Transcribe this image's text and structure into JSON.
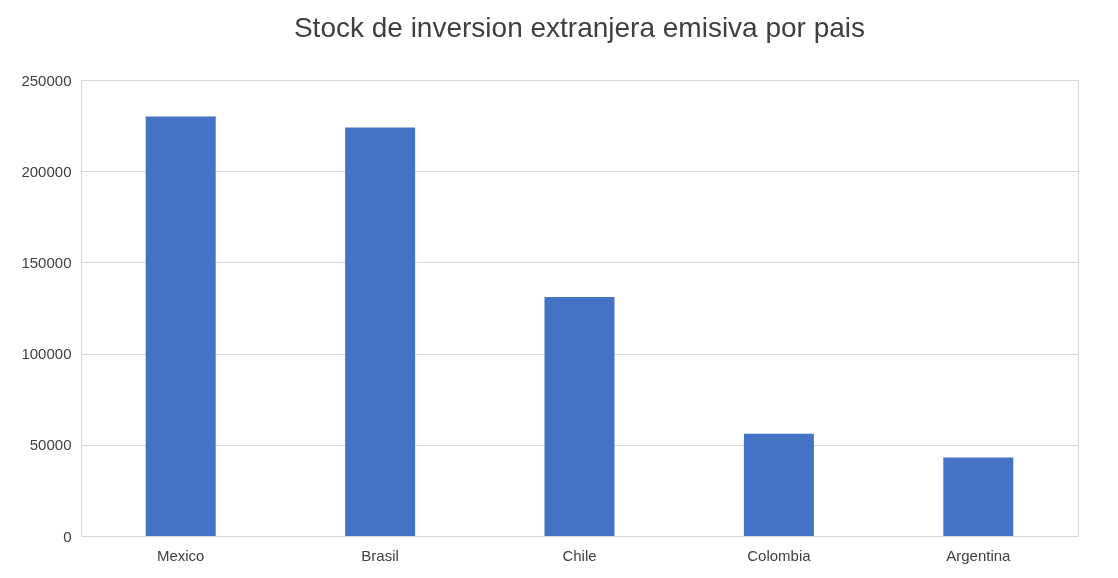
{
  "chart_data": {
    "type": "bar",
    "title": "Stock de inversion extranjera emisiva por pais",
    "categories": [
      "Mexico",
      "Brasil",
      "Chile",
      "Colombia",
      "Argentina"
    ],
    "values": [
      230000,
      224000,
      131000,
      56000,
      43000
    ],
    "color": "#4472c4",
    "ylim": [
      0,
      250000
    ],
    "yticks": [
      0,
      50000,
      100000,
      150000,
      200000,
      250000
    ],
    "grid": "y"
  }
}
